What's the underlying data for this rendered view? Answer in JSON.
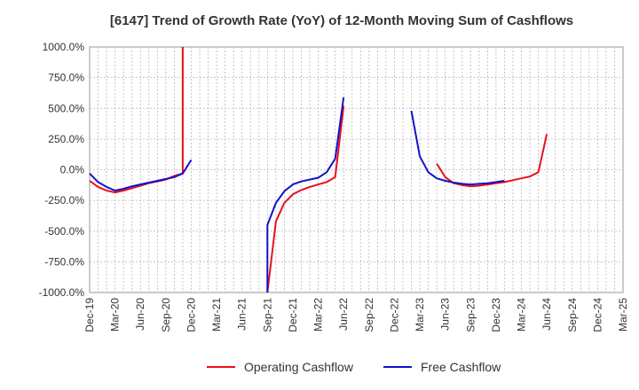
{
  "chart_data": {
    "type": "line",
    "title": "[6147]  Trend of Growth Rate (YoY) of 12-Month Moving Sum of Cashflows",
    "xlabel": "",
    "ylabel": "",
    "ylim": [
      -1000,
      1000
    ],
    "y_ticks": [
      1000,
      750,
      500,
      250,
      0,
      -250,
      -500,
      -750,
      -1000
    ],
    "y_tick_labels": [
      "1000.0%",
      "750.0%",
      "500.0%",
      "250.0%",
      "0.0%",
      "-250.0%",
      "-500.0%",
      "-750.0%",
      "-1000.0%"
    ],
    "x_tick_labels": [
      "Dec-19",
      "Mar-20",
      "Jun-20",
      "Sep-20",
      "Dec-20",
      "Mar-21",
      "Jun-21",
      "Sep-21",
      "Dec-21",
      "Mar-22",
      "Jun-22",
      "Sep-22",
      "Dec-22",
      "Mar-23",
      "Jun-23",
      "Sep-23",
      "Dec-23",
      "Mar-24",
      "Jun-24",
      "Sep-24",
      "Dec-24",
      "Mar-25"
    ],
    "x_range": [
      "2019-12",
      "2025-03"
    ],
    "grid": true,
    "legend_position": "bottom",
    "series": [
      {
        "name": "Operating Cashflow",
        "color": "#e8101a",
        "points": [
          [
            "2019-12",
            -90
          ],
          [
            "2020-01",
            -140
          ],
          [
            "2020-02",
            -170
          ],
          [
            "2020-03",
            -185
          ],
          [
            "2020-04",
            -170
          ],
          [
            "2020-05",
            -150
          ],
          [
            "2020-06",
            -130
          ],
          [
            "2020-07",
            -110
          ],
          [
            "2020-08",
            -95
          ],
          [
            "2020-09",
            -80
          ],
          [
            "2020-10",
            -50
          ],
          [
            "2020-11",
            -30
          ],
          [
            "2020-11",
            1000
          ],
          null,
          [
            "2021-09",
            -1000
          ],
          [
            "2021-10",
            -420
          ],
          [
            "2021-11",
            -270
          ],
          [
            "2021-12",
            -200
          ],
          [
            "2022-01",
            -165
          ],
          [
            "2022-02",
            -140
          ],
          [
            "2022-03",
            -120
          ],
          [
            "2022-04",
            -100
          ],
          [
            "2022-05",
            -60
          ],
          [
            "2022-06",
            520
          ],
          null,
          [
            "2023-05",
            50
          ],
          [
            "2023-06",
            -60
          ],
          [
            "2023-07",
            -110
          ],
          [
            "2023-08",
            -125
          ],
          [
            "2023-09",
            -135
          ],
          [
            "2023-10",
            -130
          ],
          [
            "2023-11",
            -120
          ],
          [
            "2023-12",
            -110
          ],
          [
            "2024-01",
            -100
          ],
          [
            "2024-02",
            -85
          ],
          [
            "2024-03",
            -70
          ],
          [
            "2024-04",
            -55
          ],
          [
            "2024-05",
            -20
          ],
          [
            "2024-06",
            290
          ]
        ]
      },
      {
        "name": "Free Cashflow",
        "color": "#1212c8",
        "points": [
          [
            "2019-12",
            -30
          ],
          [
            "2020-01",
            -100
          ],
          [
            "2020-02",
            -140
          ],
          [
            "2020-03",
            -170
          ],
          [
            "2020-04",
            -155
          ],
          [
            "2020-05",
            -135
          ],
          [
            "2020-06",
            -120
          ],
          [
            "2020-07",
            -105
          ],
          [
            "2020-08",
            -90
          ],
          [
            "2020-09",
            -75
          ],
          [
            "2020-10",
            -60
          ],
          [
            "2020-11",
            -30
          ],
          [
            "2020-12",
            80
          ],
          null,
          [
            "2021-09",
            -1000
          ],
          [
            "2021-09",
            -450
          ],
          [
            "2021-10",
            -270
          ],
          [
            "2021-11",
            -175
          ],
          [
            "2021-12",
            -120
          ],
          [
            "2022-01",
            -95
          ],
          [
            "2022-02",
            -80
          ],
          [
            "2022-03",
            -65
          ],
          [
            "2022-04",
            -20
          ],
          [
            "2022-05",
            90
          ],
          [
            "2022-06",
            590
          ],
          null,
          [
            "2023-02",
            480
          ],
          [
            "2023-03",
            110
          ],
          [
            "2023-04",
            -20
          ],
          [
            "2023-05",
            -70
          ],
          [
            "2023-06",
            -90
          ],
          [
            "2023-07",
            -105
          ],
          [
            "2023-08",
            -115
          ],
          [
            "2023-09",
            -120
          ],
          [
            "2023-10",
            -115
          ],
          [
            "2023-11",
            -110
          ],
          [
            "2023-12",
            -100
          ],
          [
            "2023-13",
            -90
          ]
        ]
      }
    ]
  }
}
